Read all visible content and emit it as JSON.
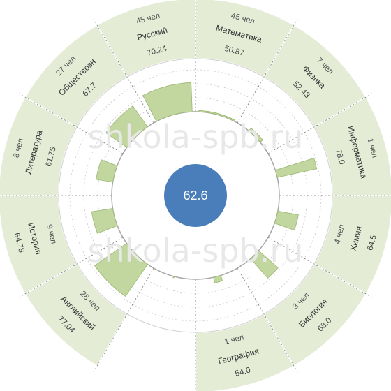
{
  "chart_data": {
    "type": "polar-bar",
    "center_value": "62.6",
    "watermark": "shkola-spb.ru",
    "value_range": [
      50,
      80
    ],
    "colors": {
      "band": "#e4ecd6",
      "bar": "#c2d6a0",
      "bar_stroke": "#9bb872",
      "center": "#4a7ebb",
      "circle": "#a6a6a6",
      "grid": "#c8c8c8"
    },
    "subjects": [
      {
        "name": "Математика",
        "value": 50.87,
        "value_label": "50.87",
        "count_label": "45 чел",
        "band": true
      },
      {
        "name": "Физика",
        "value": 52.43,
        "value_label": "52.43",
        "count_label": "7 чел",
        "band": true
      },
      {
        "name": "Информатика",
        "value": 78.0,
        "value_label": "78.0",
        "count_label": "1 чел",
        "band": true
      },
      {
        "name": "Химия",
        "value": 64.5,
        "value_label": "64.5",
        "count_label": "4 чел",
        "band": true
      },
      {
        "name": "Биология",
        "value": 68.0,
        "value_label": "68.0",
        "count_label": "3 чел",
        "band": true
      },
      {
        "name": "География",
        "value": 54.0,
        "value_label": "54.0",
        "count_label": "1 чел",
        "band": true
      },
      {
        "name": "",
        "value": 51.0,
        "value_label": "",
        "count_label": "",
        "band": false
      },
      {
        "name": "Английский",
        "value": 77.04,
        "value_label": "77.04",
        "count_label": "28 чел",
        "band": true
      },
      {
        "name": "История",
        "value": 64.78,
        "value_label": "64.78",
        "count_label": "9 чел",
        "band": true
      },
      {
        "name": "Литература",
        "value": 61.75,
        "value_label": "61.75",
        "count_label": "8 чел",
        "band": true
      },
      {
        "name": "Обществозн",
        "value": 67.7,
        "value_label": "67.7",
        "count_label": "27 чел",
        "band": true
      },
      {
        "name": "Русский",
        "value": 70.24,
        "value_label": "70.24",
        "count_label": "45 чел",
        "band": true
      }
    ]
  }
}
